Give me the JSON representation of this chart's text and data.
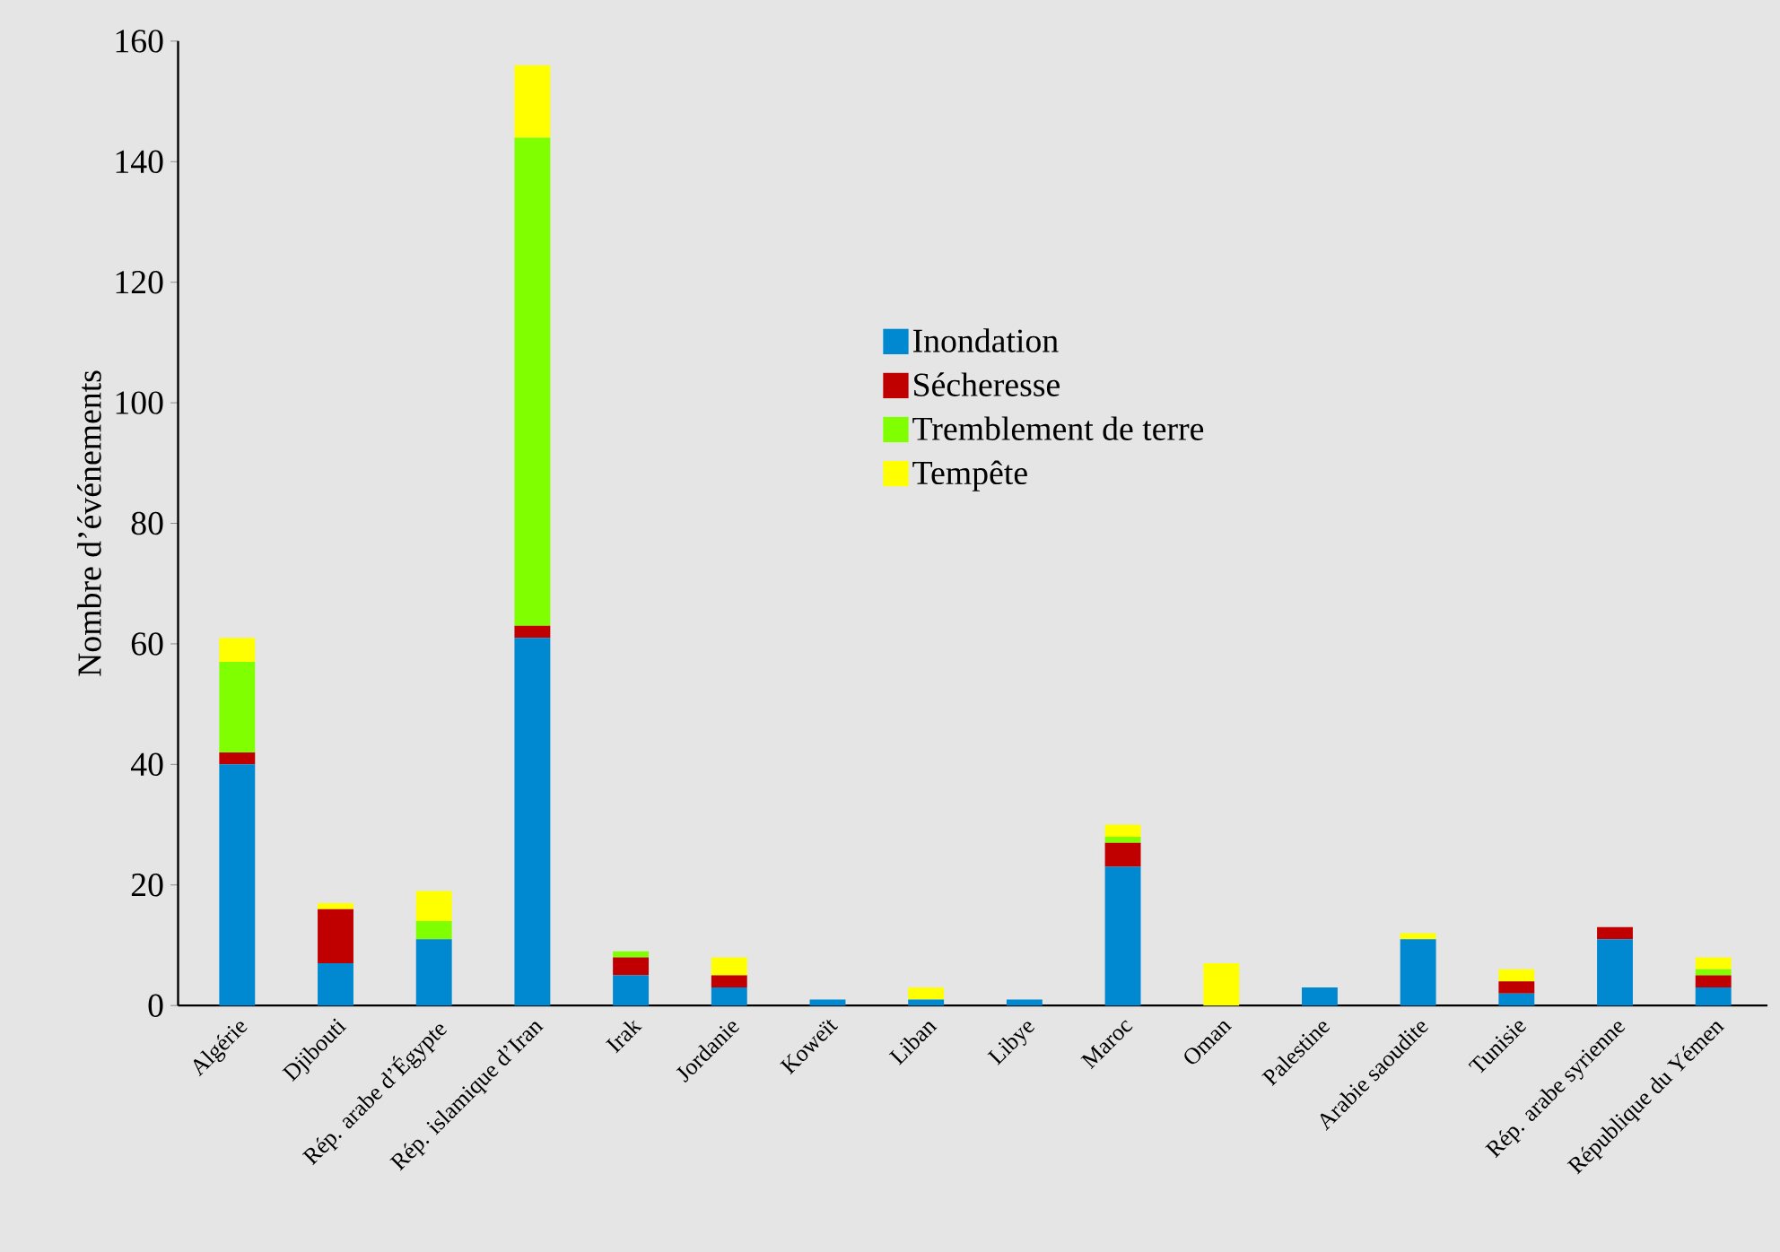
{
  "chart_data": {
    "type": "bar",
    "stacked": true,
    "ylabel": "Nombre d’événements",
    "categories": [
      "Algérie",
      "Djibouti",
      "Rép. arabe d’Égypte",
      "Rép. islamique d’Iran",
      "Irak",
      "Jordanie",
      "Koweït",
      "Liban",
      "Libye",
      "Maroc",
      "Oman",
      "Palestine",
      "Arabie saoudite",
      "Tunisie",
      "Rép. arabe syrienne",
      "République du Yémen"
    ],
    "series": [
      {
        "name": "Inondation",
        "color": "#0088d1",
        "values": [
          40,
          7,
          11,
          61,
          5,
          3,
          1,
          1,
          1,
          23,
          0,
          3,
          11,
          2,
          11,
          3
        ]
      },
      {
        "name": "Sécheresse",
        "color": "#c00000",
        "values": [
          2,
          9,
          0,
          2,
          3,
          2,
          0,
          0,
          0,
          4,
          0,
          0,
          0,
          2,
          2,
          2
        ]
      },
      {
        "name": "Tremblement de terre",
        "color": "#80ff00",
        "values": [
          15,
          0,
          3,
          81,
          1,
          0,
          0,
          0,
          0,
          1,
          0,
          0,
          0,
          0,
          0,
          1
        ]
      },
      {
        "name": "Tempête",
        "color": "#ffff00",
        "values": [
          4,
          1,
          5,
          12,
          0,
          3,
          0,
          2,
          0,
          2,
          7,
          0,
          1,
          2,
          0,
          2
        ]
      }
    ],
    "ylim": [
      0,
      160
    ],
    "yticks": [
      0,
      20,
      40,
      60,
      80,
      100,
      120,
      140,
      160
    ],
    "legend": "center"
  }
}
